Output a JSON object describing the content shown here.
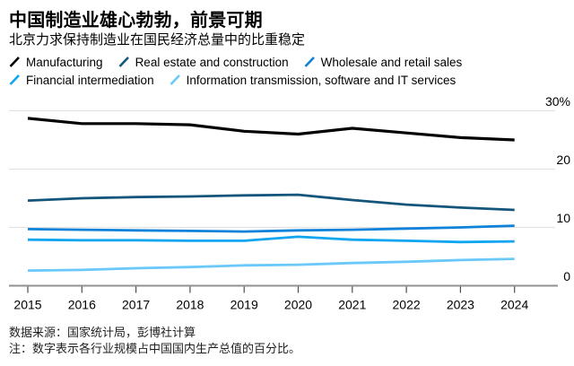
{
  "header": {
    "title": "中国制造业雄心勃勃，前景可期",
    "subtitle": "北京力求保持制造业在国民经济总量中的比重稳定"
  },
  "legend": {
    "rows": [
      [
        0,
        1,
        2
      ],
      [
        3,
        4
      ]
    ]
  },
  "chart_data": {
    "type": "line",
    "x": [
      2015,
      2016,
      2017,
      2018,
      2019,
      2020,
      2021,
      2022,
      2023,
      2024
    ],
    "series": [
      {
        "name": "Manufacturing",
        "color": "#000000",
        "values": [
          28.7,
          27.8,
          27.8,
          27.6,
          26.5,
          26.0,
          27.0,
          26.2,
          25.4,
          25.0
        ]
      },
      {
        "name": "Real estate and construction",
        "color": "#14557c",
        "values": [
          14.6,
          15.0,
          15.2,
          15.3,
          15.5,
          15.6,
          14.7,
          13.9,
          13.4,
          13.0
        ]
      },
      {
        "name": "Wholesale and retail sales",
        "color": "#0e82d8",
        "values": [
          9.7,
          9.6,
          9.5,
          9.4,
          9.3,
          9.5,
          9.6,
          9.8,
          10.0,
          10.3
        ]
      },
      {
        "name": "Financial intermediation",
        "color": "#0fa5f0",
        "values": [
          7.9,
          7.8,
          7.8,
          7.7,
          7.7,
          8.4,
          7.9,
          7.7,
          7.5,
          7.6
        ]
      },
      {
        "name": "Information transmission, software and IT services",
        "color": "#6ac8fa",
        "values": [
          2.6,
          2.7,
          3.0,
          3.2,
          3.5,
          3.6,
          3.9,
          4.1,
          4.4,
          4.6
        ]
      }
    ],
    "title": "中国制造业雄心勃勃，前景可期",
    "xlabel": "",
    "ylabel": "",
    "ylim": [
      0,
      30
    ],
    "yticks": [
      0,
      10,
      20,
      30
    ],
    "ytick_labels": [
      "0",
      "10",
      "20",
      "30%"
    ],
    "grid": true,
    "legend_position": "top",
    "colors": {
      "gridline": "#e2e2e2",
      "axis": "#919191",
      "tick": "#4d4d4d",
      "label": "#000000"
    }
  },
  "footer": {
    "source": "数据来源：国家统计局，彭博社计算",
    "note": "注：数字表示各行业规模占中国国内生产总值的百分比。"
  }
}
